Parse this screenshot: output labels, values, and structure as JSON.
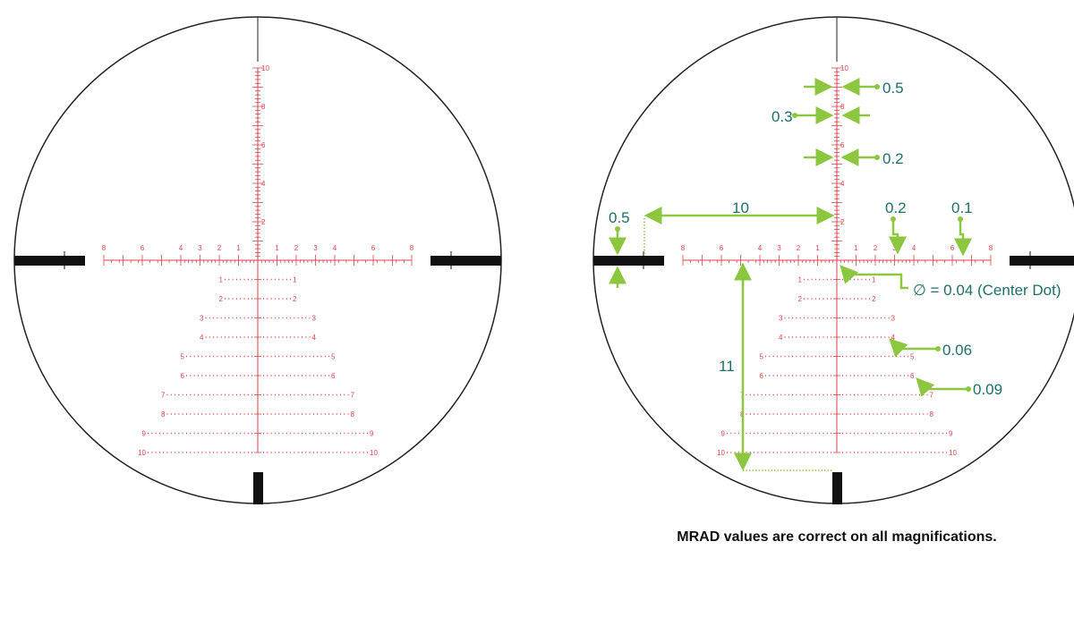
{
  "reticles": [
    {
      "vertical_labels": [
        2,
        4,
        6,
        8,
        10
      ],
      "horizontal_labels": [
        1,
        2,
        3,
        4,
        6,
        8
      ],
      "row_labels": [
        1,
        2,
        3,
        4,
        5,
        6,
        7,
        8,
        9,
        10
      ]
    },
    {
      "vertical_labels": [
        2,
        4,
        6,
        8,
        10
      ],
      "horizontal_labels": [
        1,
        2,
        3,
        4,
        6,
        8
      ],
      "row_labels": [
        1,
        2,
        3,
        4,
        5,
        6,
        7,
        8,
        9,
        10
      ]
    }
  ],
  "annotations": {
    "post_width": "0.5",
    "line_0_3": "0.3",
    "line_0_2": "0.2",
    "post_gap": "10",
    "bar_height": "0.5",
    "hash_0_2": "0.2",
    "hash_0_1": "0.1",
    "center_dot": "∅ = 0.04 (Center Dot)",
    "dot_0_06": "0.06",
    "dot_0_09": "0.09",
    "post_drop": "11"
  },
  "caption": "MRAD values are correct on all magnifications."
}
